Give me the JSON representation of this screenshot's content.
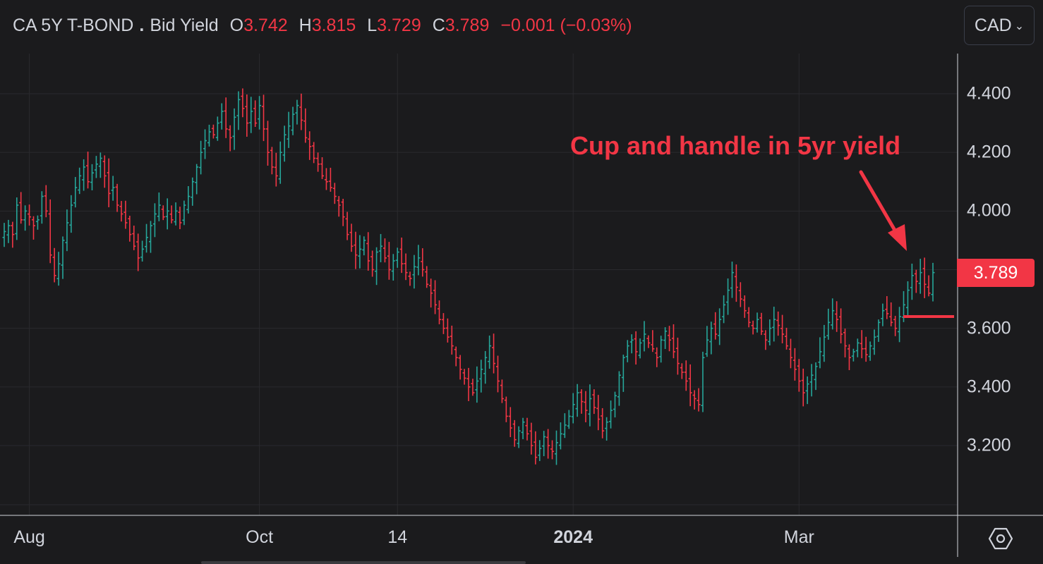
{
  "legend": {
    "symbol": "CA 5Y T-BOND",
    "dot": ".",
    "label": "Bid Yield",
    "o_label": "O",
    "o_value": "3.742",
    "h_label": "H",
    "h_value": "3.815",
    "l_label": "L",
    "l_value": "3.729",
    "c_label": "C",
    "c_value": "3.789",
    "change": "−0.001 (−0.03%)"
  },
  "currency_button": {
    "label": "CAD",
    "chevron": "ˇ"
  },
  "annotation": {
    "text": "Cup and handle in 5yr yield",
    "color": "#f23645"
  },
  "price_tag": {
    "value": "3.789",
    "color": "#f23645"
  },
  "colors": {
    "up": "#26a69a",
    "down": "#f23645",
    "grid": "#2a2a2e",
    "axis_text": "#d1d4dc",
    "background": "#1b1b1d"
  },
  "icons": {
    "settings": "settings-icon"
  },
  "chart_data": {
    "type": "ohlc-bar",
    "title": "CA 5Y T-BOND . Bid Yield",
    "xlabel": "",
    "ylabel": "",
    "ylim": [
      3.0,
      4.55
    ],
    "y_ticks": [
      "4.400",
      "4.200",
      "4.000",
      "3.800",
      "3.600",
      "3.400",
      "3.200"
    ],
    "y_tick_values": [
      4.4,
      4.2,
      4.0,
      3.8,
      3.6,
      3.4,
      3.2
    ],
    "x_ticks": [
      {
        "label": "Aug",
        "index": 6,
        "bold": false
      },
      {
        "label": "Oct",
        "index": 61,
        "bold": false
      },
      {
        "label": "14",
        "index": 94,
        "bold": false
      },
      {
        "label": "2024",
        "index": 136,
        "bold": true
      },
      {
        "label": "Mar",
        "index": 190,
        "bold": false
      }
    ],
    "last_close": 3.789,
    "series_close": [
      3.93,
      3.95,
      3.92,
      4.02,
      3.97,
      4.0,
      3.98,
      3.95,
      3.97,
      4.05,
      4.0,
      3.85,
      3.78,
      3.82,
      3.9,
      3.96,
      4.02,
      4.08,
      4.12,
      4.15,
      4.1,
      4.13,
      4.16,
      4.18,
      4.12,
      4.06,
      4.08,
      4.02,
      3.99,
      3.96,
      3.92,
      3.88,
      3.84,
      3.87,
      3.91,
      3.95,
      3.99,
      4.02,
      3.98,
      4.0,
      3.97,
      4.0,
      3.96,
      4.02,
      4.05,
      4.1,
      4.15,
      4.2,
      4.24,
      4.27,
      4.26,
      4.3,
      4.34,
      4.28,
      4.25,
      4.32,
      4.38,
      4.35,
      4.3,
      4.34,
      4.3,
      4.36,
      4.28,
      4.2,
      4.15,
      4.12,
      4.2,
      4.26,
      4.29,
      4.33,
      4.36,
      4.31,
      4.25,
      4.22,
      4.18,
      4.16,
      4.12,
      4.1,
      4.08,
      4.05,
      4.02,
      3.98,
      3.92,
      3.88,
      3.85,
      3.87,
      3.9,
      3.83,
      3.8,
      3.86,
      3.88,
      3.84,
      3.8,
      3.83,
      3.86,
      3.82,
      3.79,
      3.77,
      3.81,
      3.84,
      3.8,
      3.75,
      3.72,
      3.68,
      3.63,
      3.6,
      3.57,
      3.54,
      3.5,
      3.46,
      3.43,
      3.4,
      3.38,
      3.42,
      3.46,
      3.5,
      3.54,
      3.48,
      3.42,
      3.36,
      3.3,
      3.26,
      3.22,
      3.25,
      3.28,
      3.24,
      3.2,
      3.16,
      3.19,
      3.23,
      3.2,
      3.18,
      3.21,
      3.24,
      3.27,
      3.3,
      3.34,
      3.38,
      3.35,
      3.32,
      3.36,
      3.33,
      3.29,
      3.25,
      3.28,
      3.32,
      3.37,
      3.44,
      3.5,
      3.54,
      3.56,
      3.52,
      3.55,
      3.58,
      3.55,
      3.53,
      3.5,
      3.56,
      3.59,
      3.56,
      3.52,
      3.48,
      3.45,
      3.42,
      3.38,
      3.36,
      3.34,
      3.5,
      3.56,
      3.6,
      3.58,
      3.63,
      3.68,
      3.73,
      3.79,
      3.74,
      3.7,
      3.66,
      3.62,
      3.6,
      3.63,
      3.59,
      3.56,
      3.6,
      3.63,
      3.61,
      3.58,
      3.54,
      3.5,
      3.46,
      3.42,
      3.38,
      3.41,
      3.44,
      3.47,
      3.52,
      3.57,
      3.62,
      3.66,
      3.63,
      3.58,
      3.54,
      3.5,
      3.52,
      3.55,
      3.53,
      3.51,
      3.54,
      3.57,
      3.62,
      3.66,
      3.65,
      3.62,
      3.6,
      3.64,
      3.68,
      3.73,
      3.78,
      3.76,
      3.79,
      3.75,
      3.72,
      3.79
    ]
  }
}
